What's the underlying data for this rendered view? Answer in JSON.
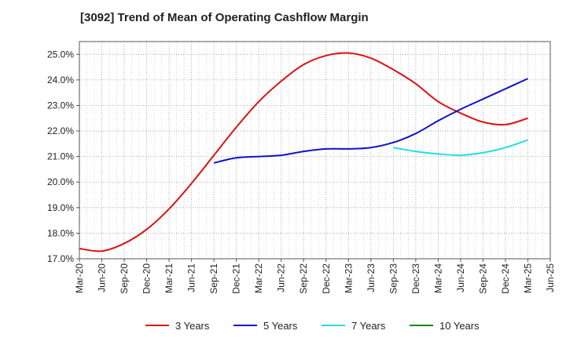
{
  "title": "[3092]  Trend of Mean of Operating Cashflow Margin",
  "chart_data": {
    "type": "line",
    "title": "[3092]  Trend of Mean of Operating Cashflow Margin",
    "xlabel": "",
    "ylabel": "",
    "x_ticks": [
      "Mar-20",
      "Jun-20",
      "Sep-20",
      "Dec-20",
      "Mar-21",
      "Jun-21",
      "Sep-21",
      "Dec-21",
      "Mar-22",
      "Jun-22",
      "Sep-22",
      "Dec-22",
      "Mar-23",
      "Jun-23",
      "Sep-23",
      "Dec-23",
      "Mar-24",
      "Jun-24",
      "Sep-24",
      "Dec-24",
      "Mar-25",
      "Jun-25"
    ],
    "y_ticks": [
      "17.0%",
      "18.0%",
      "19.0%",
      "20.0%",
      "21.0%",
      "22.0%",
      "23.0%",
      "24.0%",
      "25.0%"
    ],
    "ylim": [
      17.0,
      25.5
    ],
    "grid": true,
    "legend_position": "bottom",
    "series": [
      {
        "name": "3 Years",
        "color": "#dd1111",
        "points": [
          [
            "Mar-20",
            17.4
          ],
          [
            "Jun-20",
            17.3
          ],
          [
            "Sep-20",
            17.6
          ],
          [
            "Dec-20",
            18.15
          ],
          [
            "Mar-21",
            18.95
          ],
          [
            "Jun-21",
            19.95
          ],
          [
            "Sep-21",
            21.05
          ],
          [
            "Dec-21",
            22.15
          ],
          [
            "Mar-22",
            23.15
          ],
          [
            "Jun-22",
            23.95
          ],
          [
            "Sep-22",
            24.6
          ],
          [
            "Dec-22",
            24.95
          ],
          [
            "Mar-23",
            25.05
          ],
          [
            "Jun-23",
            24.85
          ],
          [
            "Sep-23",
            24.4
          ],
          [
            "Dec-23",
            23.85
          ],
          [
            "Mar-24",
            23.15
          ],
          [
            "Jun-24",
            22.7
          ],
          [
            "Sep-24",
            22.35
          ],
          [
            "Dec-24",
            22.25
          ],
          [
            "Mar-25",
            22.5
          ]
        ]
      },
      {
        "name": "5 Years",
        "color": "#1111cc",
        "points": [
          [
            "Sep-21",
            20.75
          ],
          [
            "Dec-21",
            20.95
          ],
          [
            "Mar-22",
            21.0
          ],
          [
            "Jun-22",
            21.05
          ],
          [
            "Sep-22",
            21.2
          ],
          [
            "Dec-22",
            21.3
          ],
          [
            "Mar-23",
            21.3
          ],
          [
            "Jun-23",
            21.35
          ],
          [
            "Sep-23",
            21.55
          ],
          [
            "Dec-23",
            21.9
          ],
          [
            "Mar-24",
            22.4
          ],
          [
            "Jun-24",
            22.85
          ],
          [
            "Sep-24",
            23.25
          ],
          [
            "Dec-24",
            23.65
          ],
          [
            "Mar-25",
            24.05
          ]
        ]
      },
      {
        "name": "7 Years",
        "color": "#22dddd",
        "points": [
          [
            "Sep-23",
            21.35
          ],
          [
            "Dec-23",
            21.2
          ],
          [
            "Mar-24",
            21.1
          ],
          [
            "Jun-24",
            21.05
          ],
          [
            "Sep-24",
            21.15
          ],
          [
            "Dec-24",
            21.35
          ],
          [
            "Mar-25",
            21.65
          ]
        ]
      },
      {
        "name": "10 Years",
        "color": "#118811",
        "points": []
      }
    ]
  }
}
